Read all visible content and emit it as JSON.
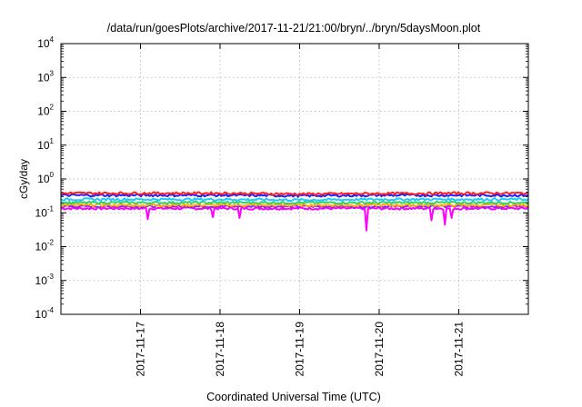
{
  "chart_data": {
    "type": "line",
    "title": "/data/run/goesPlots/archive/2017-11-21/21:00/bryn/../bryn/5daysMoon.plot",
    "xlabel": "Coordinated Universal Time (UTC)",
    "ylabel": "cGy/day",
    "yscale": "log",
    "ylim": [
      0.0001,
      10000
    ],
    "y_ticks": [
      {
        "value": 10000,
        "base": "10",
        "exp": "4"
      },
      {
        "value": 1000,
        "base": "10",
        "exp": "3"
      },
      {
        "value": 100,
        "base": "10",
        "exp": "2"
      },
      {
        "value": 10,
        "base": "10",
        "exp": "1"
      },
      {
        "value": 1,
        "base": "10",
        "exp": "0"
      },
      {
        "value": 0.1,
        "base": "10",
        "exp": "-1"
      },
      {
        "value": 0.01,
        "base": "10",
        "exp": "-2"
      },
      {
        "value": 0.001,
        "base": "10",
        "exp": "-3"
      },
      {
        "value": 0.0001,
        "base": "10",
        "exp": "-4"
      }
    ],
    "x_range": [
      "2017-11-16T00:00",
      "2017-11-21T21:00"
    ],
    "x_ticks": [
      "2017-11-17",
      "2017-11-18",
      "2017-11-19",
      "2017-11-20",
      "2017-11-21"
    ],
    "grid": true,
    "series": [
      {
        "color": "#ff2020",
        "level": 0.38,
        "x": [
          "2017-11-16T00:00",
          "2017-11-17T00:00",
          "2017-11-18T00:00",
          "2017-11-19T00:00",
          "2017-11-20T00:00",
          "2017-11-21T00:00",
          "2017-11-21T21:00"
        ],
        "values": [
          0.38,
          0.38,
          0.38,
          0.36,
          0.37,
          0.38,
          0.38
        ]
      },
      {
        "color": "#2020ff",
        "level": 0.33,
        "x": [
          "2017-11-16T00:00",
          "2017-11-17T00:00",
          "2017-11-18T00:00",
          "2017-11-19T00:00",
          "2017-11-20T00:00",
          "2017-11-21T00:00",
          "2017-11-21T21:00"
        ],
        "values": [
          0.33,
          0.33,
          0.33,
          0.32,
          0.33,
          0.33,
          0.33
        ]
      },
      {
        "color": "#20c8ff",
        "level": 0.25,
        "x": [
          "2017-11-16T00:00",
          "2017-11-17T00:00",
          "2017-11-18T00:00",
          "2017-11-19T00:00",
          "2017-11-20T00:00",
          "2017-11-21T00:00",
          "2017-11-21T21:00"
        ],
        "values": [
          0.25,
          0.25,
          0.25,
          0.24,
          0.25,
          0.25,
          0.25
        ]
      },
      {
        "color": "#30d070",
        "level": 0.2,
        "x": [
          "2017-11-16T00:00",
          "2017-11-17T00:00",
          "2017-11-18T00:00",
          "2017-11-19T00:00",
          "2017-11-20T00:00",
          "2017-11-21T00:00",
          "2017-11-21T21:00"
        ],
        "values": [
          0.2,
          0.2,
          0.2,
          0.2,
          0.2,
          0.2,
          0.2
        ]
      },
      {
        "color": "#ffb000",
        "level": 0.17,
        "x": [
          "2017-11-16T00:00",
          "2017-11-17T00:00",
          "2017-11-18T00:00",
          "2017-11-19T00:00",
          "2017-11-20T00:00",
          "2017-11-21T00:00",
          "2017-11-21T21:00"
        ],
        "values": [
          0.17,
          0.17,
          0.17,
          0.17,
          0.17,
          0.17,
          0.17
        ]
      },
      {
        "color": "#a020f0",
        "level": 0.155,
        "x": [
          "2017-11-16T00:00",
          "2017-11-17T00:00",
          "2017-11-18T00:00",
          "2017-11-19T00:00",
          "2017-11-20T00:00",
          "2017-11-21T00:00",
          "2017-11-21T21:00"
        ],
        "values": [
          0.155,
          0.155,
          0.155,
          0.155,
          0.155,
          0.155,
          0.155
        ]
      },
      {
        "color": "#ff00ff",
        "level": 0.135,
        "x": [
          "2017-11-16T00:00",
          "2017-11-17T00:00",
          "2017-11-18T00:00",
          "2017-11-19T00:00",
          "2017-11-20T00:00",
          "2017-11-21T00:00",
          "2017-11-21T21:00"
        ],
        "values": [
          0.135,
          0.135,
          0.135,
          0.135,
          0.135,
          0.135,
          0.135
        ],
        "dips": [
          {
            "x": "2017-11-17T02:00",
            "value": 0.065
          },
          {
            "x": "2017-11-17T22:00",
            "value": 0.075
          },
          {
            "x": "2017-11-18T06:00",
            "value": 0.07
          },
          {
            "x": "2017-11-19T20:00",
            "value": 0.03
          },
          {
            "x": "2017-11-20T16:00",
            "value": 0.06
          },
          {
            "x": "2017-11-20T20:00",
            "value": 0.045
          },
          {
            "x": "2017-11-20T22:00",
            "value": 0.07
          }
        ]
      }
    ]
  }
}
